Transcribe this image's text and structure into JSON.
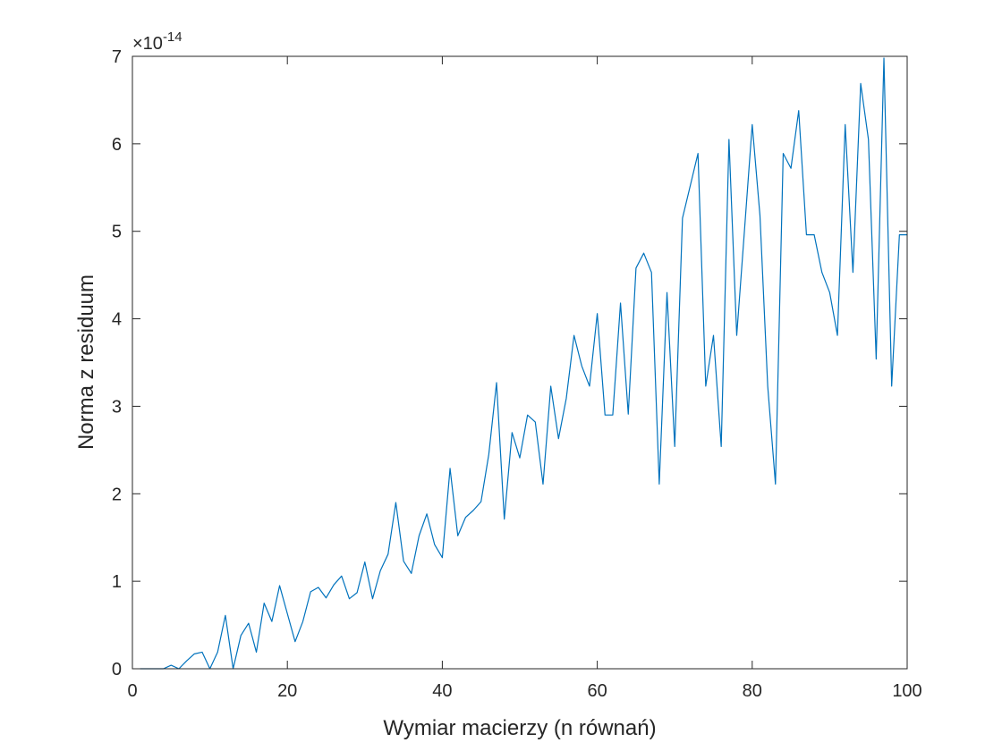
{
  "chart_data": {
    "type": "line",
    "title": "",
    "xlabel": "Wymiar macierzy (n równań)",
    "ylabel": "Norma z residuum",
    "y_exponent": {
      "prefix": "×10",
      "power": "-14"
    },
    "xlim": [
      0,
      100
    ],
    "ylim": [
      0,
      7
    ],
    "xticks": [
      0,
      20,
      40,
      60,
      80,
      100
    ],
    "yticks": [
      0,
      1,
      2,
      3,
      4,
      5,
      6,
      7
    ],
    "grid": false,
    "legend": "none",
    "colors": {
      "series": "#0072bd",
      "axis": "#262626",
      "background": "#ffffff"
    },
    "series": [
      {
        "x": [
          1,
          2,
          3,
          4,
          5,
          6,
          7,
          8,
          9,
          10,
          11,
          12,
          13,
          14,
          15,
          16,
          17,
          18,
          19,
          20,
          21,
          22,
          23,
          24,
          25,
          26,
          27,
          28,
          29,
          30,
          31,
          32,
          33,
          34,
          35,
          36,
          37,
          38,
          39,
          40,
          41,
          42,
          43,
          44,
          45,
          46,
          47,
          48,
          49,
          50,
          51,
          52,
          53,
          54,
          55,
          56,
          57,
          58,
          59,
          60,
          61,
          62,
          63,
          64,
          65,
          66,
          67,
          68,
          69,
          70,
          71,
          72,
          73,
          74,
          75,
          76,
          77,
          78,
          79,
          80,
          81,
          82,
          83,
          84,
          85,
          86,
          87,
          88,
          89,
          90,
          91,
          92,
          93,
          94,
          95,
          96,
          97,
          98,
          99,
          100
        ],
        "y": [
          0,
          0,
          0,
          0,
          0.04,
          0,
          0.09,
          0.17,
          0.19,
          0,
          0.19,
          0.61,
          0,
          0.38,
          0.52,
          0.19,
          0.75,
          0.54,
          0.95,
          0.63,
          0.31,
          0.54,
          0.88,
          0.93,
          0.81,
          0.96,
          1.06,
          0.8,
          0.87,
          1.22,
          0.8,
          1.12,
          1.31,
          1.9,
          1.23,
          1.09,
          1.52,
          1.77,
          1.42,
          1.27,
          2.29,
          1.52,
          1.73,
          1.81,
          1.91,
          2.45,
          3.27,
          1.71,
          2.7,
          2.41,
          2.9,
          2.82,
          2.11,
          3.23,
          2.63,
          3.09,
          3.81,
          3.46,
          3.23,
          4.06,
          2.9,
          2.9,
          4.18,
          2.91,
          4.58,
          4.75,
          4.53,
          2.11,
          4.3,
          2.54,
          5.15,
          5.52,
          5.89,
          3.23,
          3.81,
          2.54,
          6.05,
          3.81,
          5.01,
          6.22,
          5.18,
          3.23,
          2.11,
          5.89,
          5.72,
          6.38,
          4.96,
          4.96,
          4.53,
          4.3,
          3.81,
          6.22,
          4.53,
          6.69,
          6.05,
          3.54,
          6.98,
          3.23,
          4.96,
          4.96
        ]
      }
    ]
  }
}
